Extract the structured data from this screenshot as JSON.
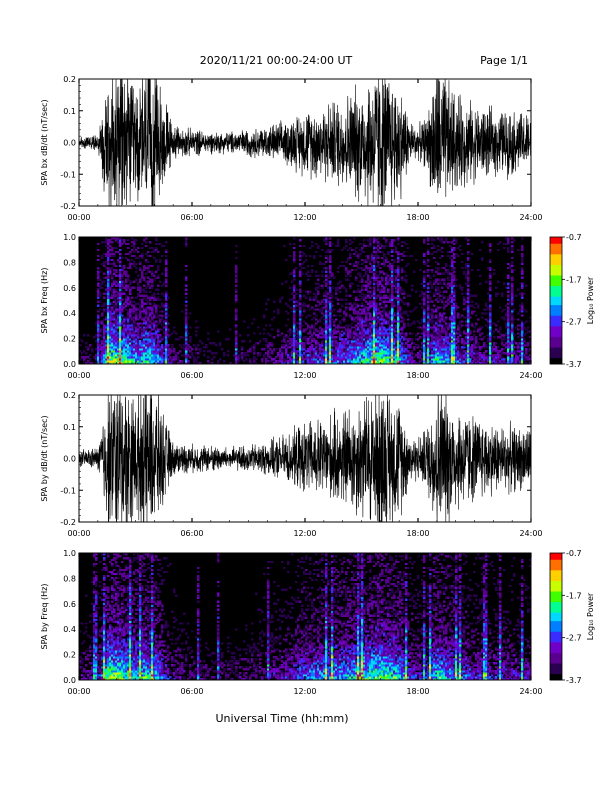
{
  "header": {
    "date_range": "2020/11/21  00:00-24:00 UT",
    "page": "Page 1/1"
  },
  "xlabel": "Universal Time (hh:mm)",
  "colors": {
    "trace": "#000000",
    "spectrogram_background": "#000000",
    "colormap": [
      "#000000",
      "#2a0050",
      "#5a0090",
      "#7000c8",
      "#3a2cff",
      "#0080ff",
      "#00d8ff",
      "#00ff90",
      "#40ff00",
      "#c8ff00",
      "#ffd000",
      "#ff7000",
      "#ff0000"
    ]
  },
  "chart_data": [
    {
      "type": "line",
      "ylabel": "SPA bx dB/dt (nT/sec)",
      "x_range": [
        0,
        24
      ],
      "x_ticks": [
        "00:00",
        "06:00",
        "12:00",
        "18:00",
        "24:00"
      ],
      "ylim": [
        -0.2,
        0.2
      ],
      "y_ticks": [
        "-0.2",
        "-0.1",
        "0.0",
        "0.1",
        "0.2"
      ],
      "amplitude_envelope": {
        "hours": [
          0,
          1,
          1.6,
          2,
          2.5,
          3,
          3.5,
          4,
          4.5,
          5,
          6,
          7,
          8,
          9,
          10,
          11,
          12,
          13,
          14,
          15,
          16,
          17,
          17.6,
          18,
          18.5,
          19,
          20,
          21,
          22,
          23,
          24
        ],
        "amplitude": [
          0.02,
          0.03,
          0.3,
          0.3,
          0.3,
          0.2,
          0.3,
          0.28,
          0.18,
          0.06,
          0.05,
          0.04,
          0.04,
          0.05,
          0.06,
          0.08,
          0.12,
          0.14,
          0.17,
          0.22,
          0.3,
          0.22,
          0.08,
          0.06,
          0.1,
          0.3,
          0.18,
          0.14,
          0.12,
          0.12,
          0.1
        ]
      }
    },
    {
      "type": "heatmap",
      "ylabel": "SPA bx Freq (Hz)",
      "x_range": [
        0,
        24
      ],
      "x_ticks": [
        "00:00",
        "06:00",
        "12:00",
        "18:00",
        "24:00"
      ],
      "ylim": [
        0,
        1.0
      ],
      "y_ticks": [
        "0.0",
        "0.2",
        "0.4",
        "0.6",
        "0.8",
        "1.0"
      ],
      "colorbar": {
        "label": "Log₁₀ Power",
        "range": [
          -3.7,
          -0.7
        ],
        "ticks": [
          "-0.7",
          "-1.7",
          "-2.7",
          "-3.7"
        ]
      },
      "activity_by_hour": {
        "hours": [
          0,
          1,
          1.6,
          2,
          2.5,
          3,
          3.5,
          4,
          4.5,
          5,
          6,
          7,
          8,
          9,
          10,
          11,
          12,
          13,
          14,
          15,
          16,
          17,
          17.6,
          18,
          18.5,
          19,
          20,
          21,
          22,
          23,
          24
        ],
        "level": [
          0.2,
          0.3,
          0.95,
          0.9,
          0.85,
          0.7,
          0.8,
          0.75,
          0.5,
          0.3,
          0.25,
          0.2,
          0.2,
          0.25,
          0.3,
          0.4,
          0.5,
          0.55,
          0.6,
          0.75,
          0.9,
          0.7,
          0.4,
          0.35,
          0.45,
          0.8,
          0.55,
          0.45,
          0.4,
          0.4,
          0.35
        ]
      }
    },
    {
      "type": "line",
      "ylabel": "SPA by dB/dt (nT/sec)",
      "x_range": [
        0,
        24
      ],
      "x_ticks": [
        "00:00",
        "06:00",
        "12:00",
        "18:00",
        "24:00"
      ],
      "ylim": [
        -0.2,
        0.2
      ],
      "y_ticks": [
        "-0.2",
        "-0.1",
        "0.0",
        "0.1",
        "0.2"
      ],
      "amplitude_envelope": {
        "hours": [
          0,
          1,
          1.6,
          2,
          2.5,
          3,
          3.5,
          4,
          4.5,
          5,
          6,
          7,
          8,
          9,
          10,
          11,
          12,
          13,
          14,
          15,
          16,
          17,
          17.6,
          18,
          18.5,
          19,
          20,
          21,
          22,
          23,
          24
        ],
        "amplitude": [
          0.03,
          0.04,
          0.3,
          0.3,
          0.3,
          0.22,
          0.3,
          0.28,
          0.16,
          0.06,
          0.05,
          0.05,
          0.04,
          0.05,
          0.06,
          0.09,
          0.13,
          0.15,
          0.18,
          0.22,
          0.3,
          0.22,
          0.09,
          0.08,
          0.12,
          0.3,
          0.2,
          0.16,
          0.13,
          0.12,
          0.11
        ]
      }
    },
    {
      "type": "heatmap",
      "ylabel": "SPA by Freq (Hz)",
      "x_range": [
        0,
        24
      ],
      "x_ticks": [
        "00:00",
        "06:00",
        "12:00",
        "18:00",
        "24:00"
      ],
      "ylim": [
        0,
        1.0
      ],
      "y_ticks": [
        "0.0",
        "0.2",
        "0.4",
        "0.6",
        "0.8",
        "1.0"
      ],
      "colorbar": {
        "label": "Log₁₀ Power",
        "range": [
          -3.7,
          -0.7
        ],
        "ticks": [
          "-0.7",
          "-1.7",
          "-2.7",
          "-3.7"
        ]
      },
      "activity_by_hour": {
        "hours": [
          0,
          1,
          1.6,
          2,
          2.5,
          3,
          3.5,
          4,
          4.5,
          5,
          6,
          7,
          8,
          9,
          10,
          11,
          12,
          13,
          14,
          15,
          16,
          17,
          17.6,
          18,
          18.5,
          19,
          20,
          21,
          22,
          23,
          24
        ],
        "level": [
          0.3,
          0.4,
          0.95,
          0.9,
          0.85,
          0.7,
          0.8,
          0.75,
          0.5,
          0.35,
          0.3,
          0.25,
          0.25,
          0.3,
          0.35,
          0.45,
          0.6,
          0.65,
          0.7,
          0.8,
          0.9,
          0.75,
          0.5,
          0.45,
          0.5,
          0.8,
          0.6,
          0.5,
          0.45,
          0.45,
          0.4
        ]
      }
    }
  ]
}
